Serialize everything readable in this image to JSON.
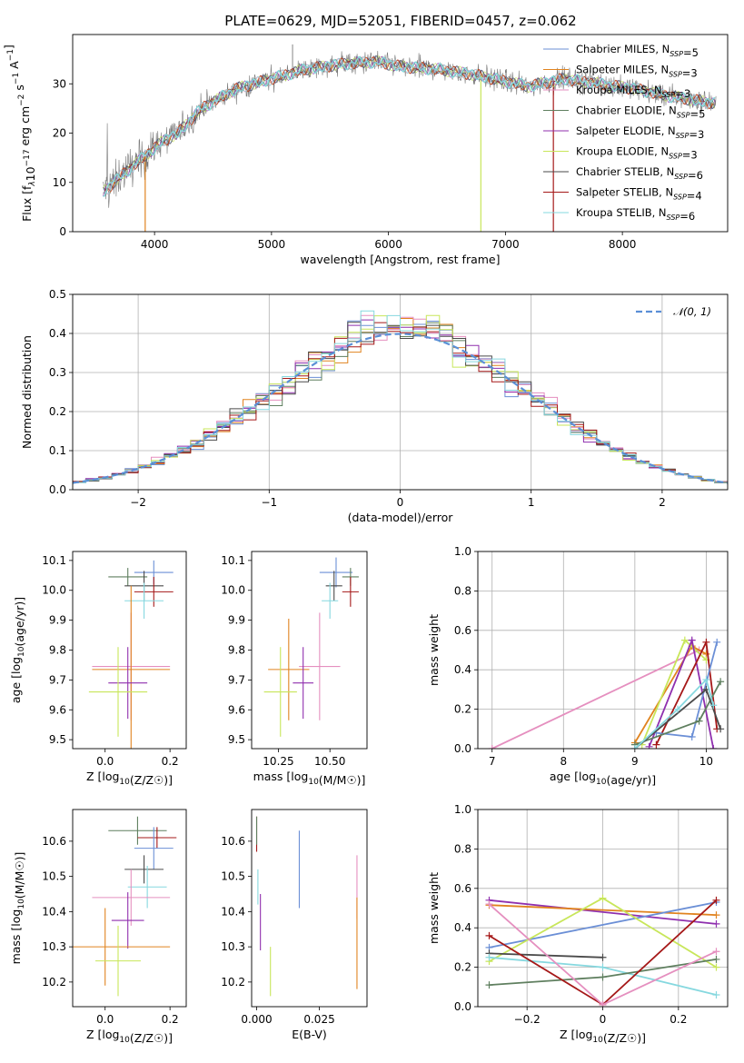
{
  "title": "PLATE=0629, MJD=52051, FIBERID=0457, z=0.062",
  "colors": {
    "Chabrier MILES": "#6b8fd6",
    "Salpeter MILES": "#e0831f",
    "Kroupa MILES": "#e58fbf",
    "Chabrier ELODIE": "#5f7f5f",
    "Salpeter ELODIE": "#8f2fae",
    "Kroupa ELODIE": "#c8e65a",
    "Chabrier STELIB": "#4a4a4a",
    "Salpeter STELIB": "#a51818",
    "Kroupa STELIB": "#86d8df"
  },
  "chart_data": [
    {
      "id": "spectrum",
      "type": "line",
      "xlabel": "wavelength [Angstrom, rest frame]",
      "ylabel": "Flux [f_λ10^-17 erg cm^-2 s^-1 A^-1]",
      "xlim": [
        3300,
        8900
      ],
      "ylim": [
        0,
        40
      ],
      "xticks": [
        4000,
        5000,
        6000,
        7000,
        8000
      ],
      "yticks": [
        0,
        10,
        20,
        30
      ],
      "grid": false,
      "legend": "top-right",
      "continuum": {
        "x": [
          3560,
          3700,
          3850,
          3950,
          4050,
          4200,
          4400,
          4700,
          5000,
          5300,
          5600,
          5900,
          6100,
          6400,
          6700,
          7000,
          7200,
          7500,
          7800,
          8100,
          8400,
          8800
        ],
        "y": [
          8,
          11,
          14,
          16,
          18,
          20,
          25,
          29,
          31,
          33,
          34,
          34.5,
          33.5,
          33,
          32,
          30.5,
          29.5,
          31,
          30,
          29,
          27.5,
          26
        ]
      },
      "spikes": [
        {
          "x": 3920,
          "y": 0
        },
        {
          "x": 5180,
          "y": 38
        },
        {
          "x": 6790,
          "y": 0
        },
        {
          "x": 7410,
          "y": 0
        }
      ],
      "legend_entries": [
        "Chabrier MILES, N_SSP=5",
        "Salpeter MILES, N_SSP=3",
        "Kroupa MILES, N_SSP=3",
        "Chabrier ELODIE, N_SSP=5",
        "Salpeter ELODIE, N_SSP=3",
        "Kroupa ELODIE, N_SSP=3",
        "Chabrier STELIB, N_SSP=6",
        "Salpeter STELIB, N_SSP=4",
        "Kroupa STELIB, N_SSP=6"
      ]
    },
    {
      "id": "residuals",
      "type": "histogram",
      "xlabel": "(data-model)/error",
      "ylabel": "Normed distribution",
      "xlim": [
        -2.5,
        2.5
      ],
      "ylim": [
        0,
        0.5
      ],
      "xticks": [
        -2,
        -1,
        0,
        1,
        2
      ],
      "yticks": [
        0.0,
        0.1,
        0.2,
        0.3,
        0.4,
        0.5
      ],
      "grid": true,
      "bin_width": 0.1,
      "legend": "top-right",
      "legend_entries": [
        "𝒩(0, 1)"
      ],
      "reference": "normal(0,1)"
    },
    {
      "id": "age_vs_Z",
      "type": "errorbar",
      "xlabel": "Z [log10(Z/Z☉)]",
      "ylabel": "age  [log10(age/yr)]",
      "xlim": [
        -0.1,
        0.25
      ],
      "ylim": [
        9.47,
        10.13
      ],
      "xticks": [
        0.0,
        0.2
      ],
      "yticks": [
        9.5,
        9.6,
        9.7,
        9.8,
        9.9,
        10.0,
        10.1
      ],
      "points": [
        {
          "model": "Chabrier MILES",
          "x": 0.15,
          "xerr": 0.06,
          "y": 10.06,
          "yerr": 0.04
        },
        {
          "model": "Chabrier ELODIE",
          "x": 0.07,
          "xerr": 0.06,
          "y": 10.045,
          "yerr": 0.03
        },
        {
          "model": "Chabrier STELIB",
          "x": 0.12,
          "xerr": 0.06,
          "y": 10.015,
          "yerr": 0.05
        },
        {
          "model": "Salpeter STELIB",
          "x": 0.15,
          "xerr": 0.06,
          "y": 9.995,
          "yerr": 0.05
        },
        {
          "model": "Kroupa STELIB",
          "x": 0.12,
          "xerr": 0.06,
          "y": 9.965,
          "yerr": 0.06
        },
        {
          "model": "Kroupa MILES",
          "x": 0.08,
          "xerr": 0.12,
          "y": 9.745,
          "yerr": 0.18
        },
        {
          "model": "Salpeter MILES",
          "x": 0.08,
          "xerr": 0.12,
          "y": 9.735,
          "yerr": 0.28
        },
        {
          "model": "Salpeter ELODIE",
          "x": 0.07,
          "xerr": 0.06,
          "y": 9.69,
          "yerr": 0.12
        },
        {
          "model": "Kroupa ELODIE",
          "x": 0.04,
          "xerr": 0.09,
          "y": 9.66,
          "yerr": 0.15
        }
      ]
    },
    {
      "id": "age_vs_mass",
      "type": "errorbar",
      "xlabel": "mass [log10(M/M☉)]",
      "ylabel": "",
      "xlim": [
        10.12,
        10.68
      ],
      "ylim": [
        9.47,
        10.13
      ],
      "xticks": [
        10.25,
        10.5
      ],
      "yticks": [
        9.5,
        9.6,
        9.7,
        9.8,
        9.9,
        10.0,
        10.1
      ],
      "points": [
        {
          "model": "Chabrier MILES",
          "x": 10.53,
          "xerr": 0.08,
          "y": 10.06,
          "yerr": 0.05
        },
        {
          "model": "Chabrier ELODIE",
          "x": 10.6,
          "xerr": 0.04,
          "y": 10.045,
          "yerr": 0.03
        },
        {
          "model": "Chabrier STELIB",
          "x": 10.52,
          "xerr": 0.04,
          "y": 10.015,
          "yerr": 0.05
        },
        {
          "model": "Salpeter STELIB",
          "x": 10.6,
          "xerr": 0.04,
          "y": 9.995,
          "yerr": 0.05
        },
        {
          "model": "Kroupa STELIB",
          "x": 10.5,
          "xerr": 0.04,
          "y": 9.965,
          "yerr": 0.06
        },
        {
          "model": "Kroupa MILES",
          "x": 10.45,
          "xerr": 0.1,
          "y": 9.745,
          "yerr": 0.18
        },
        {
          "model": "Salpeter MILES",
          "x": 10.3,
          "xerr": 0.1,
          "y": 9.735,
          "yerr": 0.17
        },
        {
          "model": "Salpeter ELODIE",
          "x": 10.37,
          "xerr": 0.05,
          "y": 9.69,
          "yerr": 0.12
        },
        {
          "model": "Kroupa ELODIE",
          "x": 10.26,
          "xerr": 0.08,
          "y": 9.66,
          "yerr": 0.15
        }
      ]
    },
    {
      "id": "weight_vs_age",
      "type": "line",
      "xlabel": "age  [log10(age/yr)]",
      "ylabel": "mass weight",
      "xlim": [
        6.8,
        10.3
      ],
      "ylim": [
        0,
        1
      ],
      "xticks": [
        7,
        8,
        9,
        10
      ],
      "yticks": [
        0.0,
        0.2,
        0.4,
        0.6,
        0.8,
        1.0
      ],
      "grid": true,
      "series": [
        {
          "model": "Kroupa MILES",
          "x": [
            7.0,
            9.9
          ],
          "y": [
            0.0,
            0.5
          ]
        },
        {
          "model": "Salpeter MILES",
          "x": [
            9.0,
            9.8,
            10.0
          ],
          "y": [
            0.03,
            0.52,
            0.48
          ]
        },
        {
          "model": "Kroupa ELODIE",
          "x": [
            9.1,
            9.7,
            10.0
          ],
          "y": [
            0.02,
            0.55,
            0.45
          ]
        },
        {
          "model": "Salpeter ELODIE",
          "x": [
            9.2,
            9.8,
            10.1
          ],
          "y": [
            0.01,
            0.55,
            0.0
          ]
        },
        {
          "model": "Salpeter STELIB",
          "x": [
            9.3,
            10.0,
            10.15
          ],
          "y": [
            0.02,
            0.54,
            0.1
          ]
        },
        {
          "model": "Chabrier MILES",
          "x": [
            9.3,
            9.8,
            10.15
          ],
          "y": [
            0.08,
            0.06,
            0.54
          ]
        },
        {
          "model": "Chabrier ELODIE",
          "x": [
            9.0,
            9.9,
            10.2
          ],
          "y": [
            0.02,
            0.14,
            0.34
          ]
        },
        {
          "model": "Chabrier STELIB",
          "x": [
            9.0,
            10.0,
            10.2
          ],
          "y": [
            0.0,
            0.3,
            0.1
          ]
        },
        {
          "model": "Kroupa STELIB",
          "x": [
            9.0,
            9.6,
            10.0,
            10.1
          ],
          "y": [
            0.0,
            0.2,
            0.35,
            0.22
          ]
        }
      ]
    },
    {
      "id": "mass_vs_Z",
      "type": "errorbar",
      "xlabel": "Z [log10(Z/Z☉)]",
      "ylabel": "mass [log10(M/M☉)]",
      "xlim": [
        -0.1,
        0.25
      ],
      "ylim": [
        10.13,
        10.69
      ],
      "xticks": [
        0.0,
        0.2
      ],
      "yticks": [
        10.2,
        10.3,
        10.4,
        10.5,
        10.6
      ],
      "points": [
        {
          "model": "Chabrier ELODIE",
          "x": 0.1,
          "xerr": 0.09,
          "y": 10.63,
          "yerr": 0.04
        },
        {
          "model": "Salpeter STELIB",
          "x": 0.16,
          "xerr": 0.06,
          "y": 10.61,
          "yerr": 0.03
        },
        {
          "model": "Chabrier MILES",
          "x": 0.15,
          "xerr": 0.06,
          "y": 10.58,
          "yerr": 0.06
        },
        {
          "model": "Chabrier STELIB",
          "x": 0.12,
          "xerr": 0.06,
          "y": 10.52,
          "yerr": 0.04
        },
        {
          "model": "Kroupa STELIB",
          "x": 0.13,
          "xerr": 0.06,
          "y": 10.47,
          "yerr": 0.06
        },
        {
          "model": "Kroupa MILES",
          "x": 0.08,
          "xerr": 0.12,
          "y": 10.44,
          "yerr": 0.08
        },
        {
          "model": "Salpeter ELODIE",
          "x": 0.07,
          "xerr": 0.05,
          "y": 10.375,
          "yerr": 0.08
        },
        {
          "model": "Salpeter MILES",
          "x": 0.0,
          "xerr": 0.2,
          "y": 10.3,
          "yerr": 0.11
        },
        {
          "model": "Kroupa ELODIE",
          "x": 0.04,
          "xerr": 0.07,
          "y": 10.26,
          "yerr": 0.1
        }
      ]
    },
    {
      "id": "mass_vs_EBV",
      "type": "errorbar",
      "xlabel": "E(B-V)",
      "ylabel": "",
      "xlim": [
        -0.002,
        0.044
      ],
      "ylim": [
        10.13,
        10.69
      ],
      "xticks": [
        0.0,
        0.025
      ],
      "yticks": [
        10.2,
        10.3,
        10.4,
        10.5,
        10.6
      ],
      "points": [
        {
          "model": "Salpeter STELIB",
          "x": 0.0,
          "xerr": 0,
          "y": 10.62,
          "yerr": 0.05
        },
        {
          "model": "Chabrier ELODIE",
          "x": 0.0,
          "xerr": 0,
          "y": 10.63,
          "yerr": 0.04
        },
        {
          "model": "Kroupa STELIB",
          "x": 0.0005,
          "xerr": 0,
          "y": 10.47,
          "yerr": 0.05
        },
        {
          "model": "Salpeter ELODIE",
          "x": 0.0015,
          "xerr": 0,
          "y": 10.37,
          "yerr": 0.08
        },
        {
          "model": "Kroupa ELODIE",
          "x": 0.0055,
          "xerr": 0,
          "y": 10.23,
          "yerr": 0.07
        },
        {
          "model": "Chabrier MILES",
          "x": 0.017,
          "xerr": 0,
          "y": 10.52,
          "yerr": 0.11
        },
        {
          "model": "Kroupa MILES",
          "x": 0.04,
          "xerr": 0,
          "y": 10.47,
          "yerr": 0.09
        },
        {
          "model": "Salpeter MILES",
          "x": 0.04,
          "xerr": 0,
          "y": 10.31,
          "yerr": 0.13
        }
      ]
    },
    {
      "id": "weight_vs_Z",
      "type": "line",
      "xlabel": "Z [log10(Z/Z☉)]",
      "ylabel": "mass weight",
      "xlim": [
        -0.33,
        0.33
      ],
      "ylim": [
        0,
        1
      ],
      "xticks": [
        -0.2,
        0.0,
        0.2
      ],
      "yticks": [
        0.0,
        0.2,
        0.4,
        0.6,
        0.8,
        1.0
      ],
      "grid": true,
      "series": [
        {
          "model": "Salpeter ELODIE",
          "x": [
            -0.3,
            0.3
          ],
          "y": [
            0.54,
            0.42
          ]
        },
        {
          "model": "Salpeter MILES",
          "x": [
            -0.3,
            0.3
          ],
          "y": [
            0.515,
            0.465
          ]
        },
        {
          "model": "Chabrier MILES",
          "x": [
            -0.3,
            0.3
          ],
          "y": [
            0.3,
            0.53
          ]
        },
        {
          "model": "Kroupa ELODIE",
          "x": [
            -0.3,
            0.0,
            0.3
          ],
          "y": [
            0.23,
            0.55,
            0.2
          ]
        },
        {
          "model": "Chabrier STELIB",
          "x": [
            -0.3,
            0.0
          ],
          "y": [
            0.27,
            0.25
          ]
        },
        {
          "model": "Kroupa STELIB",
          "x": [
            -0.3,
            0.0,
            0.3
          ],
          "y": [
            0.25,
            0.2,
            0.06
          ]
        },
        {
          "model": "Chabrier ELODIE",
          "x": [
            -0.3,
            0.0,
            0.3
          ],
          "y": [
            0.11,
            0.15,
            0.24
          ]
        },
        {
          "model": "Salpeter STELIB",
          "x": [
            -0.3,
            0.0,
            0.3
          ],
          "y": [
            0.36,
            0.01,
            0.54
          ]
        },
        {
          "model": "Kroupa MILES",
          "x": [
            -0.3,
            0.0,
            0.3
          ],
          "y": [
            0.52,
            0.01,
            0.28
          ]
        }
      ]
    }
  ]
}
